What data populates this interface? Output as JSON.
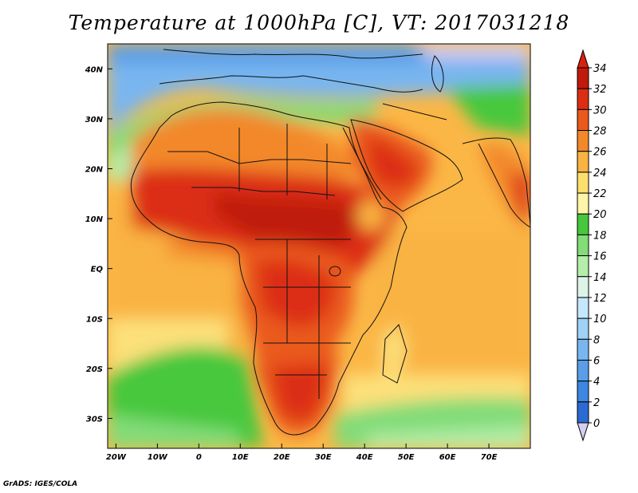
{
  "title": "Temperature at 1000hPa [C], VT: 2017031218",
  "credit": "GrADS: IGES/COLA",
  "map": {
    "lon_range": [
      -22,
      80
    ],
    "lat_range": [
      -36,
      45
    ],
    "x_ticks": [
      "20W",
      "10W",
      "0",
      "10E",
      "20E",
      "30E",
      "40E",
      "50E",
      "60E",
      "70E"
    ],
    "y_ticks": [
      "40N",
      "30N",
      "20N",
      "10N",
      "EQ",
      "10S",
      "20S",
      "30S"
    ]
  },
  "colorbar": {
    "levels": [
      "0",
      "2",
      "4",
      "6",
      "8",
      "10",
      "12",
      "14",
      "16",
      "18",
      "20",
      "22",
      "24",
      "26",
      "28",
      "30",
      "32",
      "34"
    ],
    "colors": [
      "#1c1c8c",
      "#1a46b4",
      "#2a6ad2",
      "#3d86e2",
      "#5a9ee8",
      "#78b6f0",
      "#a0d2f8",
      "#c4e8fc",
      "#dcf4e8",
      "#b4eeaa",
      "#82dc78",
      "#46c83c",
      "#fff5a8",
      "#fde06c",
      "#f9b342",
      "#f3882a",
      "#ea5a1c",
      "#dc2e12",
      "#c01a0c"
    ],
    "below_color": "#d4cef2",
    "above_color": "#d8200e"
  }
}
